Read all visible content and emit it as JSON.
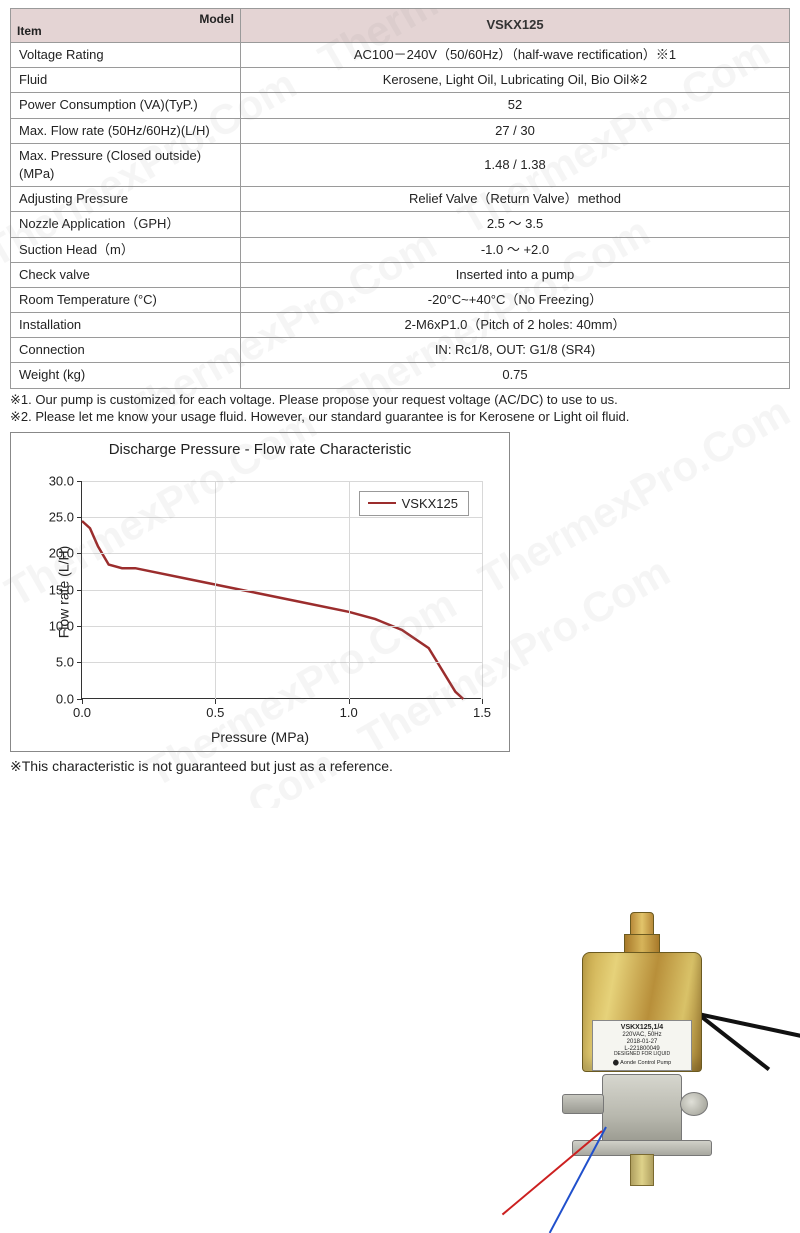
{
  "table": {
    "header_item": "Item",
    "header_model": "Model",
    "model": "VSKX125",
    "rows": [
      {
        "label": "Voltage Rating",
        "value": "AC100－240V（50/60Hz）（half-wave rectification）※1"
      },
      {
        "label": "Fluid",
        "value": "Kerosene, Light Oil, Lubricating Oil, Bio Oil※2"
      },
      {
        "label": "Power Consumption (VA)(TyP.)",
        "value": "52"
      },
      {
        "label": "Max. Flow rate (50Hz/60Hz)(L/H)",
        "value": "27 / 30"
      },
      {
        "label": "Max. Pressure (Closed outside)(MPa)",
        "value": "1.48 / 1.38"
      },
      {
        "label": "Adjusting Pressure",
        "value": "Relief Valve（Return Valve）method"
      },
      {
        "label": "Nozzle Application（GPH）",
        "value": "2.5 ～ 3.5"
      },
      {
        "label": "Suction Head（m）",
        "value": "-1.0 ～ +2.0"
      },
      {
        "label": "Check valve",
        "value": "Inserted into a pump"
      },
      {
        "label": "Room Temperature (°C)",
        "value": "-20°C~+40°C（No Freezing）"
      },
      {
        "label": "Installation",
        "value": "2-M6xP1.0（Pitch of 2 holes: 40mm）"
      },
      {
        "label": "Connection",
        "value": "IN: Rc1/8,  OUT: G1/8 (SR4)"
      },
      {
        "label": "Weight (kg)",
        "value": "0.75"
      }
    ]
  },
  "notes": {
    "n1": "※1. Our pump is customized for each voltage. Please propose your request voltage (AC/DC) to use to us.",
    "n2": "※2. Please let me know your usage fluid. However, our standard guarantee is for Kerosene or Light oil fluid."
  },
  "chart": {
    "title": "Discharge Pressure - Flow rate Characteristic",
    "ylabel": "Flow rate (L/H)",
    "xlabel": "Pressure (MPa)",
    "legend": "VSKX125",
    "xlim": [
      0.0,
      1.5
    ],
    "ylim": [
      0.0,
      30.0
    ],
    "xticks": [
      "0.0",
      "0.5",
      "1.0",
      "1.5"
    ],
    "yticks": [
      "0.0",
      "5.0",
      "10.0",
      "15.0",
      "20.0",
      "25.0",
      "30.0"
    ],
    "line_color": "#9b2d2d",
    "grid_color": "#d8d8d8",
    "background": "#ffffff",
    "series": {
      "x": [
        0.0,
        0.03,
        0.06,
        0.1,
        0.15,
        0.2,
        0.4,
        0.6,
        0.8,
        1.0,
        1.1,
        1.2,
        1.3,
        1.35,
        1.4,
        1.43
      ],
      "y": [
        24.5,
        23.5,
        21.0,
        18.5,
        18.0,
        18.0,
        16.5,
        15.0,
        13.5,
        12.0,
        11.0,
        9.5,
        7.0,
        4.0,
        1.0,
        0.0
      ]
    }
  },
  "footnote": "※This characteristic is not guaranteed but just as a reference.",
  "watermark_text": "ThermexPro.Com",
  "pump_label": {
    "line1": "VSKX125,1/4",
    "line2": "220VAC, 50Hz",
    "line3": "2018-01-27",
    "line4": "L-221800049",
    "line5": "DESIGNED FOR LIQUID",
    "brand": "Aonde Control Pump"
  }
}
